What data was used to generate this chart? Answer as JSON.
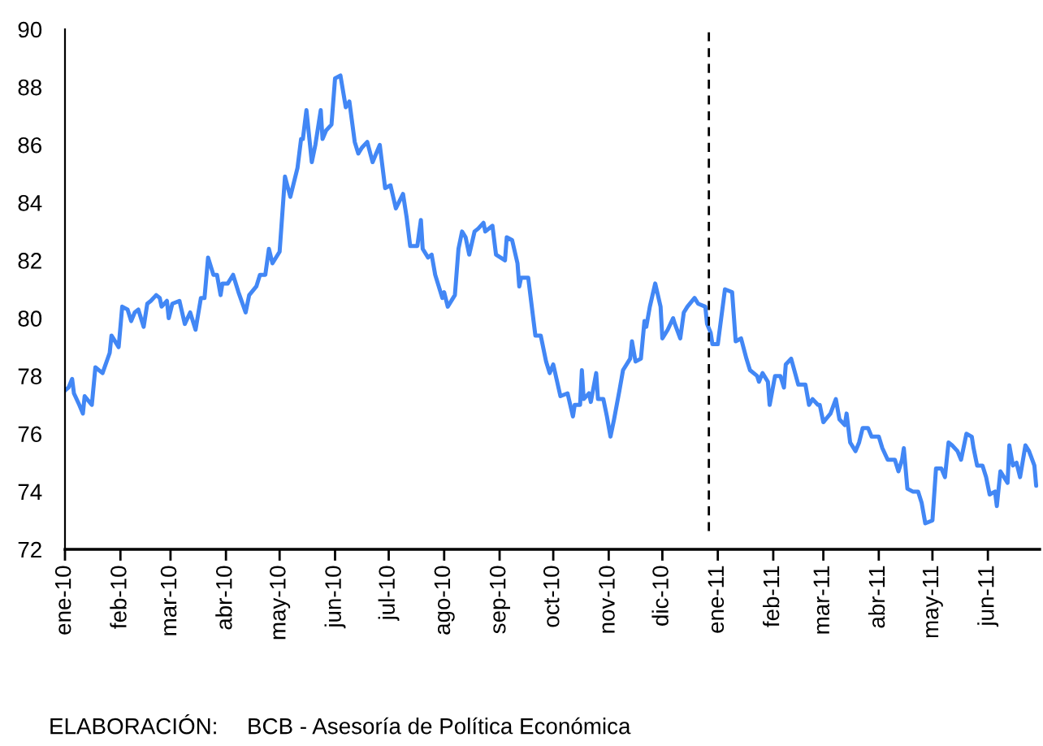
{
  "chart_data": {
    "type": "line",
    "x": [
      "2010-01-01",
      "2010-01-03",
      "2010-01-05",
      "2010-01-06",
      "2010-01-09",
      "2010-01-11",
      "2010-01-12",
      "2010-01-16",
      "2010-01-18",
      "2010-01-22",
      "2010-01-26",
      "2010-01-27",
      "2010-01-31",
      "2010-02-02",
      "2010-02-05",
      "2010-02-07",
      "2010-02-09",
      "2010-02-11",
      "2010-02-14",
      "2010-02-16",
      "2010-02-18",
      "2010-02-21",
      "2010-02-23",
      "2010-02-24",
      "2010-02-27",
      "2010-02-28",
      "2010-03-02",
      "2010-03-06",
      "2010-03-09",
      "2010-03-12",
      "2010-03-15",
      "2010-03-18",
      "2010-03-20",
      "2010-03-22",
      "2010-03-25",
      "2010-03-27",
      "2010-03-29",
      "2010-03-30",
      "2010-04-02",
      "2010-04-05",
      "2010-04-08",
      "2010-04-12",
      "2010-04-14",
      "2010-04-18",
      "2010-04-20",
      "2010-04-23",
      "2010-04-25",
      "2010-04-27",
      "2010-05-01",
      "2010-05-04",
      "2010-05-07",
      "2010-05-11",
      "2010-05-13",
      "2010-05-14",
      "2010-05-16",
      "2010-05-19",
      "2010-05-21",
      "2010-05-24",
      "2010-05-25",
      "2010-05-27",
      "2010-05-30",
      "2010-06-01",
      "2010-06-04",
      "2010-06-07",
      "2010-06-09",
      "2010-06-12",
      "2010-06-14",
      "2010-06-16",
      "2010-06-19",
      "2010-06-22",
      "2010-06-26",
      "2010-06-29",
      "2010-07-02",
      "2010-07-05",
      "2010-07-09",
      "2010-07-11",
      "2010-07-13",
      "2010-07-17",
      "2010-07-19",
      "2010-07-20",
      "2010-07-23",
      "2010-07-25",
      "2010-07-27",
      "2010-07-31",
      "2010-08-01",
      "2010-08-03",
      "2010-08-07",
      "2010-08-09",
      "2010-08-11",
      "2010-08-13",
      "2010-08-15",
      "2010-08-18",
      "2010-08-20",
      "2010-08-23",
      "2010-08-24",
      "2010-08-28",
      "2010-08-30",
      "2010-09-04",
      "2010-09-05",
      "2010-09-08",
      "2010-09-11",
      "2010-09-12",
      "2010-09-13",
      "2010-09-17",
      "2010-09-20",
      "2010-09-21",
      "2010-09-24",
      "2010-09-27",
      "2010-09-29",
      "2010-10-01",
      "2010-10-05",
      "2010-10-09",
      "2010-10-12",
      "2010-10-13",
      "2010-10-16",
      "2010-10-17",
      "2010-10-18",
      "2010-10-21",
      "2010-10-22",
      "2010-10-25",
      "2010-10-26",
      "2010-10-29",
      "2010-10-31",
      "2010-11-02",
      "2010-11-04",
      "2010-11-07",
      "2010-11-09",
      "2010-11-13",
      "2010-11-14",
      "2010-11-16",
      "2010-11-19",
      "2010-11-21",
      "2010-11-22",
      "2010-11-24",
      "2010-11-27",
      "2010-11-30",
      "2010-12-01",
      "2010-12-04",
      "2010-12-07",
      "2010-12-08",
      "2010-12-11",
      "2010-12-13",
      "2010-12-15",
      "2010-12-19",
      "2010-12-21",
      "2010-12-25",
      "2010-12-26",
      "2010-12-28",
      "2010-12-29",
      "2011-01-01",
      "2011-01-05",
      "2011-01-09",
      "2011-01-11",
      "2011-01-14",
      "2011-01-17",
      "2011-01-19",
      "2011-01-23",
      "2011-01-24",
      "2011-01-26",
      "2011-01-29",
      "2011-01-30",
      "2011-02-02",
      "2011-02-05",
      "2011-02-07",
      "2011-02-08",
      "2011-02-11",
      "2011-02-15",
      "2011-02-19",
      "2011-02-21",
      "2011-02-23",
      "2011-02-26",
      "2011-02-27",
      "2011-03-01",
      "2011-03-05",
      "2011-03-08",
      "2011-03-10",
      "2011-03-13",
      "2011-03-14",
      "2011-03-16",
      "2011-03-19",
      "2011-03-21",
      "2011-03-23",
      "2011-03-26",
      "2011-03-28",
      "2011-04-01",
      "2011-04-03",
      "2011-04-06",
      "2011-04-10",
      "2011-04-12",
      "2011-04-14",
      "2011-04-15",
      "2011-04-17",
      "2011-04-20",
      "2011-04-23",
      "2011-04-25",
      "2011-04-27",
      "2011-05-01",
      "2011-05-03",
      "2011-05-06",
      "2011-05-08",
      "2011-05-10",
      "2011-05-12",
      "2011-05-15",
      "2011-05-17",
      "2011-05-20",
      "2011-05-23",
      "2011-05-24",
      "2011-05-26",
      "2011-05-29",
      "2011-05-31",
      "2011-06-02",
      "2011-06-05",
      "2011-06-06",
      "2011-06-08",
      "2011-06-11",
      "2011-06-12",
      "2011-06-13",
      "2011-06-15",
      "2011-06-17",
      "2011-06-19",
      "2011-06-22",
      "2011-06-24",
      "2011-06-27",
      "2011-06-28"
    ],
    "series": [
      {
        "color": "#4287f5",
        "values": [
          77.5,
          77.6,
          77.9,
          77.4,
          77.0,
          76.7,
          77.3,
          77.0,
          78.3,
          78.1,
          78.8,
          79.4,
          79.0,
          80.4,
          80.3,
          79.9,
          80.2,
          80.3,
          79.7,
          80.5,
          80.6,
          80.8,
          80.7,
          80.4,
          80.6,
          80.0,
          80.5,
          80.6,
          79.8,
          80.2,
          79.6,
          80.7,
          80.7,
          82.1,
          81.5,
          81.5,
          80.8,
          81.2,
          81.2,
          81.5,
          80.9,
          80.2,
          80.8,
          81.1,
          81.5,
          81.5,
          82.4,
          81.9,
          82.3,
          84.9,
          84.2,
          85.2,
          86.2,
          86.2,
          87.2,
          85.4,
          86.0,
          87.2,
          86.2,
          86.5,
          86.7,
          88.3,
          88.4,
          87.3,
          87.5,
          86.1,
          85.7,
          85.9,
          86.1,
          85.4,
          86.0,
          84.5,
          84.6,
          83.8,
          84.3,
          83.5,
          82.5,
          82.5,
          83.4,
          82.4,
          82.1,
          82.2,
          81.5,
          80.7,
          80.9,
          80.4,
          80.8,
          82.4,
          83.0,
          82.8,
          82.2,
          83.0,
          83.1,
          83.3,
          83.0,
          83.2,
          82.2,
          82.0,
          82.8,
          82.7,
          81.9,
          81.1,
          81.4,
          81.4,
          79.9,
          79.4,
          79.4,
          78.5,
          78.1,
          78.4,
          77.3,
          77.4,
          76.6,
          77.0,
          77.0,
          78.2,
          77.2,
          77.4,
          77.1,
          78.1,
          77.2,
          77.2,
          76.6,
          75.9,
          76.5,
          77.5,
          78.2,
          78.6,
          79.2,
          78.5,
          78.6,
          79.9,
          79.7,
          80.4,
          81.2,
          80.4,
          79.3,
          79.6,
          80.0,
          79.8,
          79.3,
          80.2,
          80.4,
          80.7,
          80.5,
          80.4,
          79.8,
          79.5,
          79.1,
          79.1,
          81.0,
          80.9,
          79.2,
          79.3,
          78.6,
          78.2,
          78.0,
          77.8,
          78.1,
          77.8,
          77.0,
          78.0,
          78.0,
          77.6,
          78.4,
          78.6,
          77.7,
          77.7,
          77.0,
          77.2,
          77.0,
          77.0,
          76.4,
          76.7,
          77.2,
          76.5,
          76.3,
          76.7,
          75.7,
          75.4,
          75.7,
          76.2,
          76.2,
          75.9,
          75.9,
          75.5,
          75.1,
          75.1,
          74.7,
          75.1,
          75.5,
          74.1,
          74.0,
          74.0,
          73.6,
          72.9,
          73.0,
          74.8,
          74.8,
          74.5,
          75.7,
          75.6,
          75.4,
          75.1,
          76.0,
          75.9,
          75.5,
          74.9,
          74.9,
          74.5,
          73.9,
          74.0,
          73.5,
          74.7,
          74.4,
          74.3,
          75.6,
          74.9,
          75.0,
          74.5,
          75.6,
          75.4,
          74.9,
          74.2
        ]
      }
    ],
    "line_style": "solid",
    "xlim": [
      "2010-01-01",
      "2011-06-30"
    ],
    "xticks": [
      {
        "value": "2010-01-01",
        "label": "ene-10"
      },
      {
        "value": "2010-02-01",
        "label": "feb-10"
      },
      {
        "value": "2010-03-01",
        "label": "mar-10"
      },
      {
        "value": "2010-04-01",
        "label": "abr-10"
      },
      {
        "value": "2010-05-01",
        "label": "may-10"
      },
      {
        "value": "2010-06-01",
        "label": "jun-10"
      },
      {
        "value": "2010-07-01",
        "label": "jul-10"
      },
      {
        "value": "2010-08-01",
        "label": "ago-10"
      },
      {
        "value": "2010-09-01",
        "label": "sep-10"
      },
      {
        "value": "2010-10-01",
        "label": "oct-10"
      },
      {
        "value": "2010-11-01",
        "label": "nov-10"
      },
      {
        "value": "2010-12-01",
        "label": "dic-10"
      },
      {
        "value": "2011-01-01",
        "label": "ene-11"
      },
      {
        "value": "2011-02-01",
        "label": "feb-11"
      },
      {
        "value": "2011-03-01",
        "label": "mar-11"
      },
      {
        "value": "2011-04-01",
        "label": "abr-11"
      },
      {
        "value": "2011-05-01",
        "label": "may-11"
      },
      {
        "value": "2011-06-01",
        "label": "jun-11"
      }
    ],
    "ylim": [
      72,
      90
    ],
    "yticks": [
      72,
      74,
      76,
      78,
      80,
      82,
      84,
      86,
      88,
      90
    ],
    "ref_lines": [
      {
        "axis": "x",
        "value": "2010-12-27",
        "color": "#000000",
        "line_style": "dashed"
      }
    ],
    "annotations": [
      "ELABORACIÓN: BCB - Asesoría de Política Económica"
    ]
  }
}
